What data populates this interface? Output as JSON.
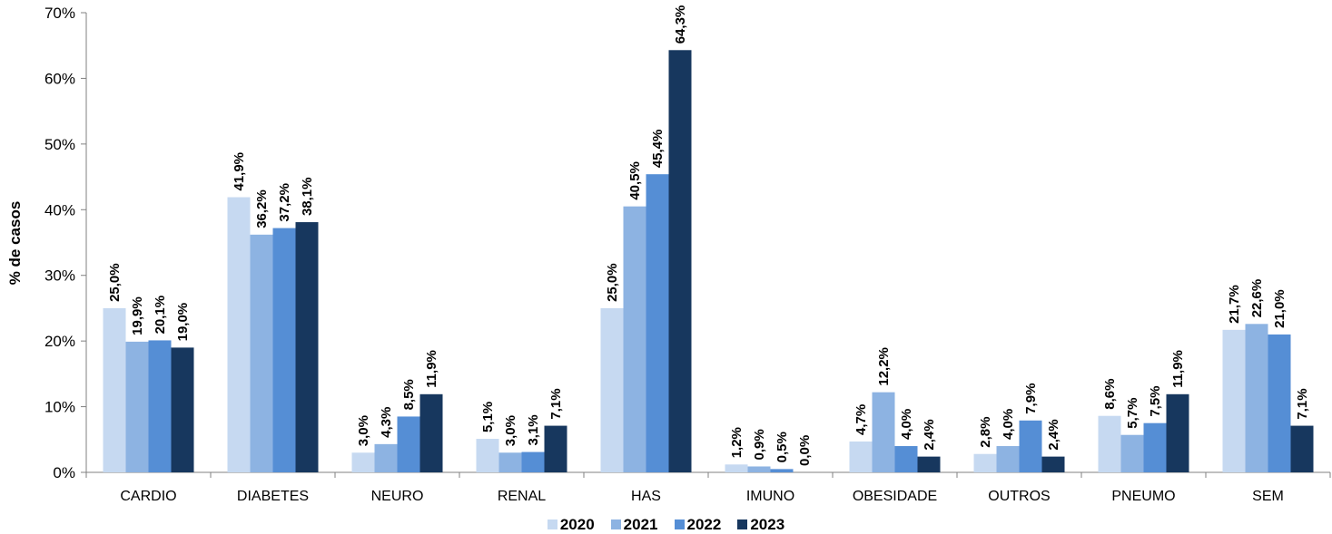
{
  "chart_data": {
    "type": "bar",
    "title": "",
    "xlabel": "",
    "ylabel": "% de casos",
    "ylim": [
      0,
      70
    ],
    "yticks": [
      "0%",
      "10%",
      "20%",
      "30%",
      "40%",
      "50%",
      "60%",
      "70%"
    ],
    "categories": [
      "CARDIO",
      "DIABETES",
      "NEURO",
      "RENAL",
      "HAS",
      "IMUNO",
      "OBESIDADE",
      "OUTROS",
      "PNEUMO",
      "SEM"
    ],
    "series": [
      {
        "name": "2020",
        "color": "#c6d9f1",
        "values": [
          25.0,
          41.9,
          3.0,
          5.1,
          25.0,
          1.2,
          4.7,
          2.8,
          8.6,
          21.7
        ],
        "labels": [
          "25,0%",
          "41,9%",
          "3,0%",
          "5,1%",
          "25,0%",
          "1,2%",
          "4,7%",
          "2,8%",
          "8,6%",
          "21,7%"
        ]
      },
      {
        "name": "2021",
        "color": "#8db3e2",
        "values": [
          19.9,
          36.2,
          4.3,
          3.0,
          40.5,
          0.9,
          12.2,
          4.0,
          5.7,
          22.6
        ],
        "labels": [
          "19,9%",
          "36,2%",
          "4,3%",
          "3,0%",
          "40,5%",
          "0,9%",
          "12,2%",
          "4,0%",
          "5,7%",
          "22,6%"
        ]
      },
      {
        "name": "2022",
        "color": "#558ed5",
        "values": [
          20.1,
          37.2,
          8.5,
          3.1,
          45.4,
          0.5,
          4.0,
          7.9,
          7.5,
          21.0
        ],
        "labels": [
          "20,1%",
          "37,2%",
          "8,5%",
          "3,1%",
          "45,4%",
          "0,5%",
          "4,0%",
          "7,9%",
          "7,5%",
          "21,0%"
        ]
      },
      {
        "name": "2023",
        "color": "#17375e",
        "values": [
          19.0,
          38.1,
          11.9,
          7.1,
          64.3,
          0.0,
          2.4,
          2.4,
          11.9,
          7.1
        ],
        "labels": [
          "19,0%",
          "38,1%",
          "11,9%",
          "7,1%",
          "64,3%",
          "0,0%",
          "2,4%",
          "2,4%",
          "11,9%",
          "7,1%"
        ]
      }
    ],
    "legend": "bottom",
    "grid": false
  }
}
